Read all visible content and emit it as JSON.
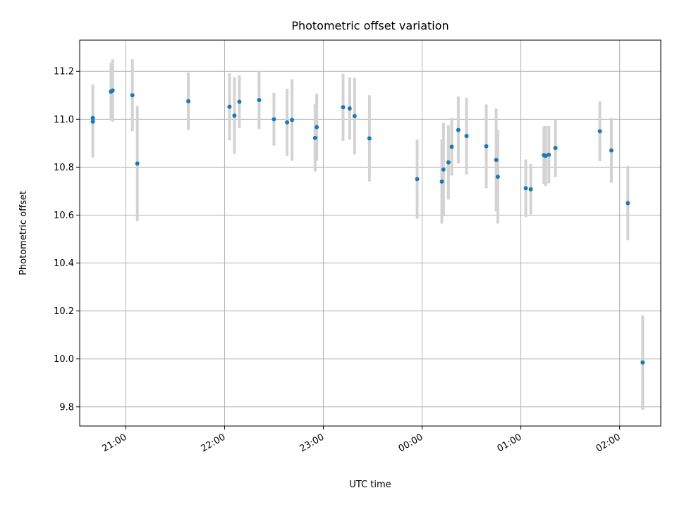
{
  "chart_data": {
    "type": "scatter",
    "title": "Photometric offset variation",
    "xlabel": "UTC time",
    "ylabel": "Photometric offset",
    "x_range": [
      "20:32",
      "02:25"
    ],
    "ylim": [
      9.72,
      11.33
    ],
    "x_ticks": [
      "21:00",
      "22:00",
      "23:00",
      "00:00",
      "01:00",
      "02:00"
    ],
    "y_ticks": [
      "9.8",
      "10.0",
      "10.2",
      "10.4",
      "10.6",
      "10.8",
      "11.0",
      "11.2"
    ],
    "grid": true,
    "colors": {
      "point": "#1f77b4",
      "error_bar": "#d3d3d3",
      "grid": "#b0b0b0"
    },
    "points": [
      {
        "x": "20:40",
        "y": 10.99,
        "err": 0.15
      },
      {
        "x": "20:40",
        "y": 11.005,
        "err": 0.14
      },
      {
        "x": "20:51",
        "y": 11.115,
        "err": 0.12
      },
      {
        "x": "20:52",
        "y": 11.12,
        "err": 0.13
      },
      {
        "x": "21:04",
        "y": 11.1,
        "err": 0.15
      },
      {
        "x": "21:07",
        "y": 10.815,
        "err": 0.24
      },
      {
        "x": "21:38",
        "y": 11.075,
        "err": 0.12
      },
      {
        "x": "22:03",
        "y": 11.052,
        "err": 0.14
      },
      {
        "x": "22:06",
        "y": 11.015,
        "err": 0.16
      },
      {
        "x": "22:09",
        "y": 11.073,
        "err": 0.11
      },
      {
        "x": "22:21",
        "y": 11.08,
        "err": 0.12
      },
      {
        "x": "22:30",
        "y": 11.0,
        "err": 0.11
      },
      {
        "x": "22:38",
        "y": 10.987,
        "err": 0.14
      },
      {
        "x": "22:41",
        "y": 10.997,
        "err": 0.17
      },
      {
        "x": "22:55",
        "y": 10.922,
        "err": 0.14
      },
      {
        "x": "22:56",
        "y": 10.967,
        "err": 0.14
      },
      {
        "x": "23:12",
        "y": 11.05,
        "err": 0.14
      },
      {
        "x": "23:16",
        "y": 11.045,
        "err": 0.13
      },
      {
        "x": "23:19",
        "y": 11.013,
        "err": 0.16
      },
      {
        "x": "23:28",
        "y": 10.92,
        "err": 0.18
      },
      {
        "x": "23:57",
        "y": 10.75,
        "err": 0.165
      },
      {
        "x": "00:12",
        "y": 10.74,
        "err": 0.175
      },
      {
        "x": "00:13",
        "y": 10.79,
        "err": 0.195
      },
      {
        "x": "00:16",
        "y": 10.82,
        "err": 0.155
      },
      {
        "x": "00:18",
        "y": 10.885,
        "err": 0.12
      },
      {
        "x": "00:22",
        "y": 10.955,
        "err": 0.14
      },
      {
        "x": "00:27",
        "y": 10.93,
        "err": 0.16
      },
      {
        "x": "00:39",
        "y": 10.887,
        "err": 0.175
      },
      {
        "x": "00:45",
        "y": 10.83,
        "err": 0.215
      },
      {
        "x": "00:46",
        "y": 10.76,
        "err": 0.195
      },
      {
        "x": "01:03",
        "y": 10.712,
        "err": 0.12
      },
      {
        "x": "01:06",
        "y": 10.708,
        "err": 0.105
      },
      {
        "x": "01:14",
        "y": 10.85,
        "err": 0.12
      },
      {
        "x": "01:15",
        "y": 10.847,
        "err": 0.125
      },
      {
        "x": "01:17",
        "y": 10.852,
        "err": 0.12
      },
      {
        "x": "01:21",
        "y": 10.88,
        "err": 0.12
      },
      {
        "x": "01:48",
        "y": 10.95,
        "err": 0.125
      },
      {
        "x": "01:55",
        "y": 10.87,
        "err": 0.135
      },
      {
        "x": "02:05",
        "y": 10.65,
        "err": 0.155
      },
      {
        "x": "02:14",
        "y": 9.985,
        "err": 0.197
      }
    ]
  }
}
